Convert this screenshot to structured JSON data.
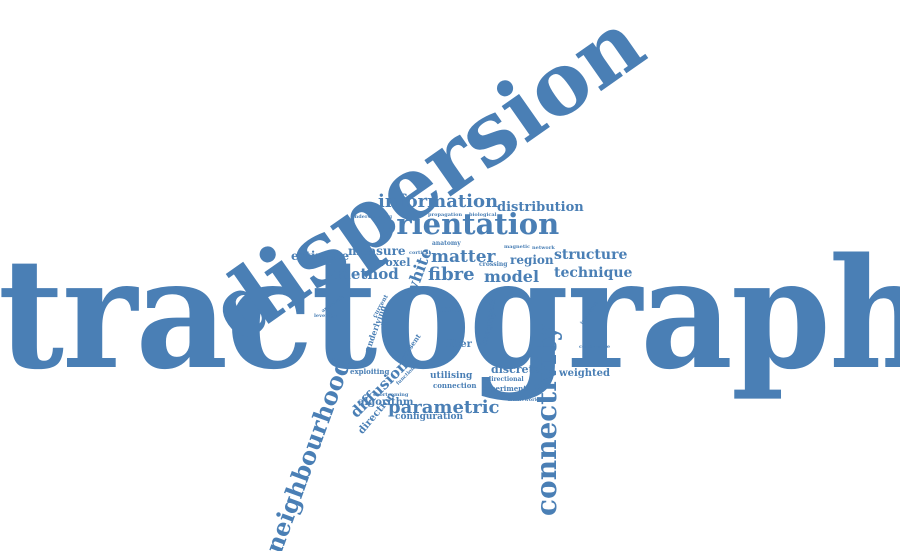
{
  "word_color": "#4a7fb5",
  "background": "#ffffff",
  "words": [
    {
      "text": "tractography"
    },
    {
      "text": "dispersion"
    },
    {
      "text": "orientation"
    },
    {
      "text": "information"
    },
    {
      "text": "distribution"
    },
    {
      "text": "connectivity"
    },
    {
      "text": "neighbourhood"
    },
    {
      "text": "parametric"
    },
    {
      "text": "fibre"
    },
    {
      "text": "matter"
    },
    {
      "text": "model"
    },
    {
      "text": "method"
    },
    {
      "text": "structure"
    },
    {
      "text": "technique"
    },
    {
      "text": "diffusion"
    },
    {
      "text": "estimate"
    },
    {
      "text": "measure"
    },
    {
      "text": "white"
    },
    {
      "text": "region"
    },
    {
      "text": "voxel"
    },
    {
      "text": "algorithm"
    },
    {
      "text": "direction"
    },
    {
      "text": "configuration"
    },
    {
      "text": "fiber"
    },
    {
      "text": "data"
    },
    {
      "text": "discrete"
    },
    {
      "text": "weighted"
    },
    {
      "text": "utilising"
    },
    {
      "text": "connection"
    },
    {
      "text": "experiment"
    },
    {
      "text": "directional"
    },
    {
      "text": "exploiting"
    },
    {
      "text": "underlying"
    },
    {
      "text": "imaging"
    },
    {
      "text": "anatomy"
    },
    {
      "text": "crossing"
    },
    {
      "text": "understanding"
    },
    {
      "text": "propagation"
    },
    {
      "text": "biological"
    },
    {
      "text": "magnetic"
    },
    {
      "text": "brain"
    },
    {
      "text": "present"
    },
    {
      "text": "current"
    },
    {
      "text": "cortical"
    },
    {
      "text": "function"
    },
    {
      "text": "shortcoming"
    },
    {
      "text": "framework"
    },
    {
      "text": "introduce"
    },
    {
      "text": "leverage"
    },
    {
      "text": "conference"
    },
    {
      "text": "approach"
    },
    {
      "text": "network"
    }
  ]
}
